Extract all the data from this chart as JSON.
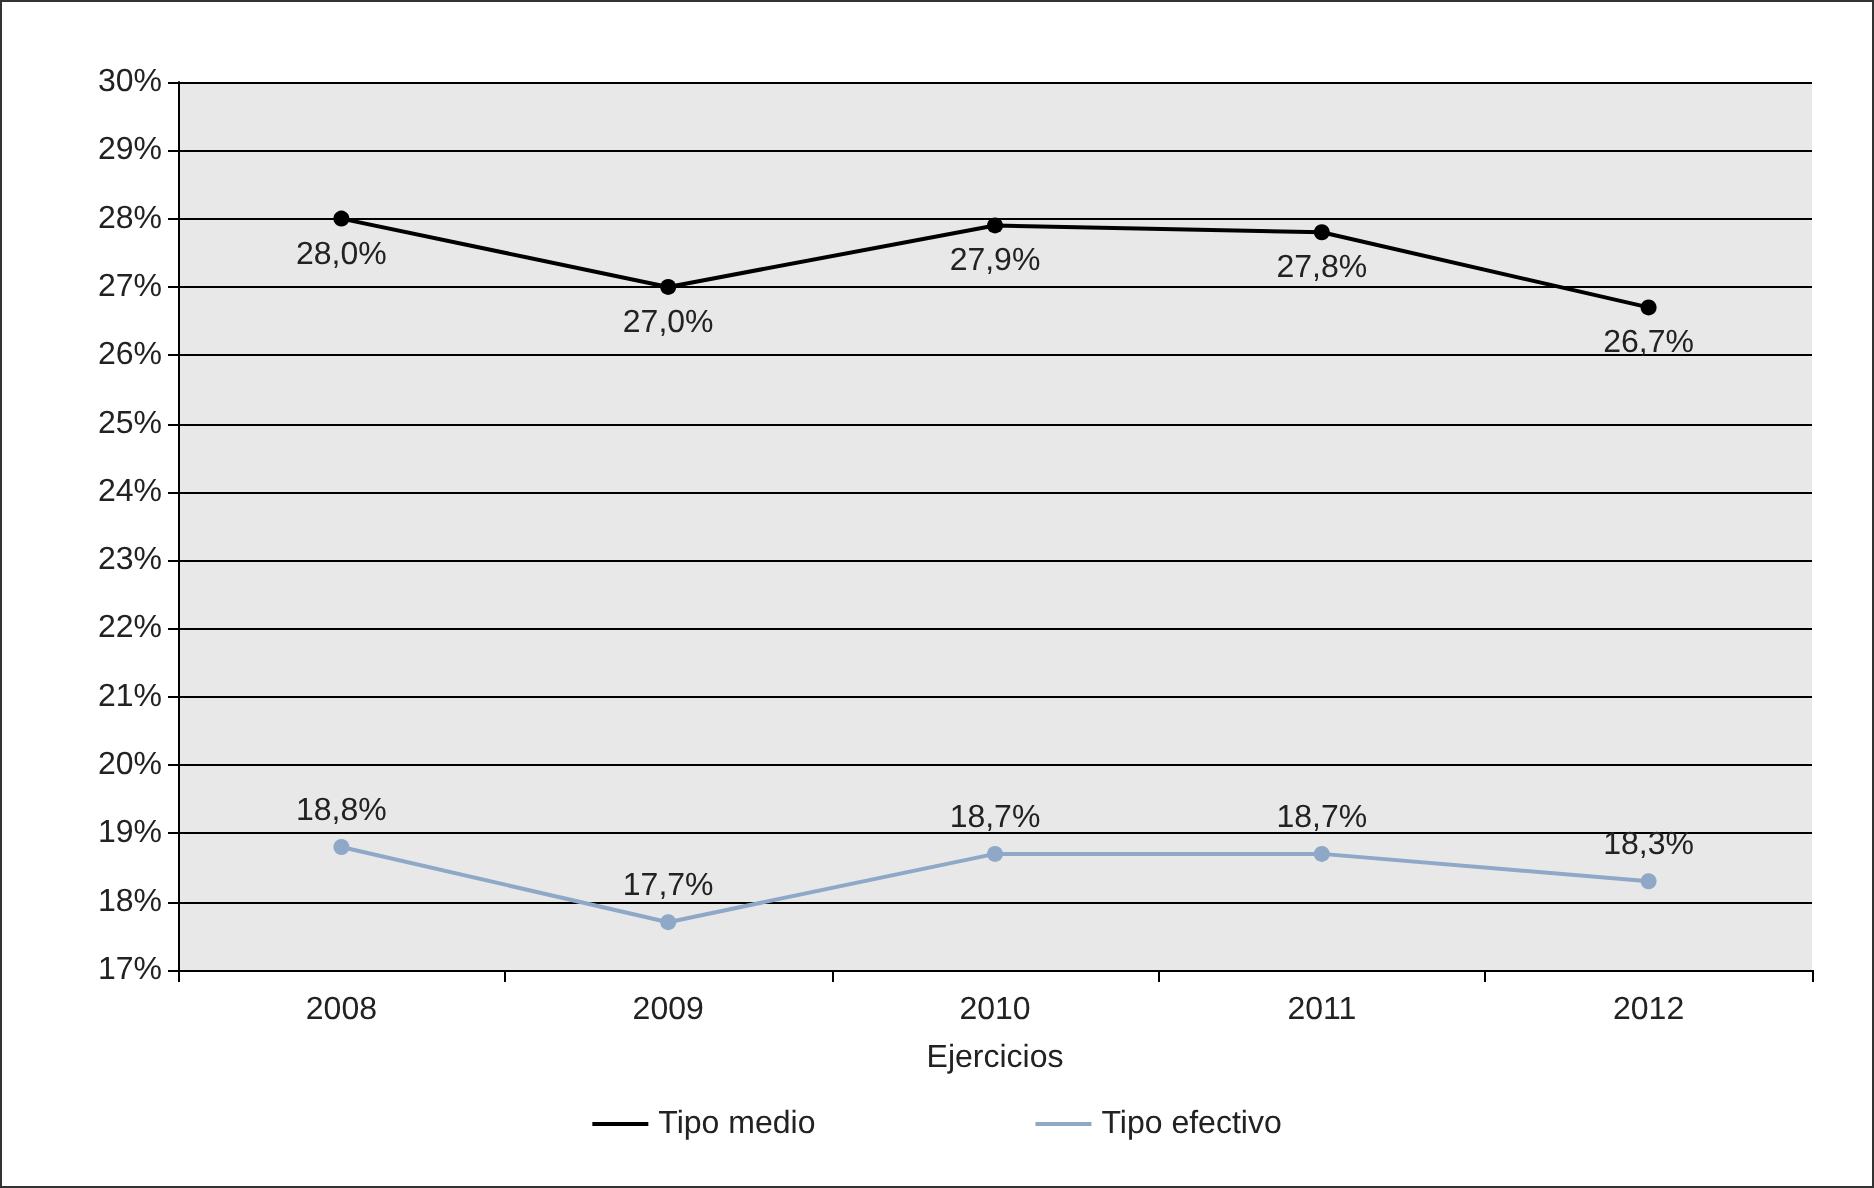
{
  "chart_data": {
    "type": "line",
    "xlabel": "Ejercicios",
    "categories": [
      "2008",
      "2009",
      "2010",
      "2011",
      "2012"
    ],
    "series": [
      {
        "name": "Tipo medio",
        "color": "#000000",
        "values": [
          28.0,
          27.0,
          27.9,
          27.8,
          26.7
        ],
        "value_labels": [
          "28,0%",
          "27,0%",
          "27,9%",
          "27,8%",
          "26,7%"
        ]
      },
      {
        "name": "Tipo efectivo",
        "color": "#8fa8c8",
        "values": [
          18.8,
          17.7,
          18.7,
          18.7,
          18.3
        ],
        "value_labels": [
          "18,8%",
          "17,7%",
          "18,7%",
          "18,7%",
          "18,3%"
        ]
      }
    ],
    "ylim": [
      17,
      30
    ],
    "yticks": [
      {
        "value": 17,
        "label": "17%"
      },
      {
        "value": 18,
        "label": "18%"
      },
      {
        "value": 19,
        "label": "19%"
      },
      {
        "value": 20,
        "label": "20%"
      },
      {
        "value": 21,
        "label": "21%"
      },
      {
        "value": 22,
        "label": "22%"
      },
      {
        "value": 23,
        "label": "23%"
      },
      {
        "value": 24,
        "label": "24%"
      },
      {
        "value": 25,
        "label": "25%"
      },
      {
        "value": 26,
        "label": "26%"
      },
      {
        "value": 27,
        "label": "27%"
      },
      {
        "value": 28,
        "label": "28%"
      },
      {
        "value": 29,
        "label": "29%"
      },
      {
        "value": 30,
        "label": "30%"
      }
    ],
    "grid": "y",
    "legend": "bottom",
    "marker": "circle",
    "line_style": "solid"
  }
}
